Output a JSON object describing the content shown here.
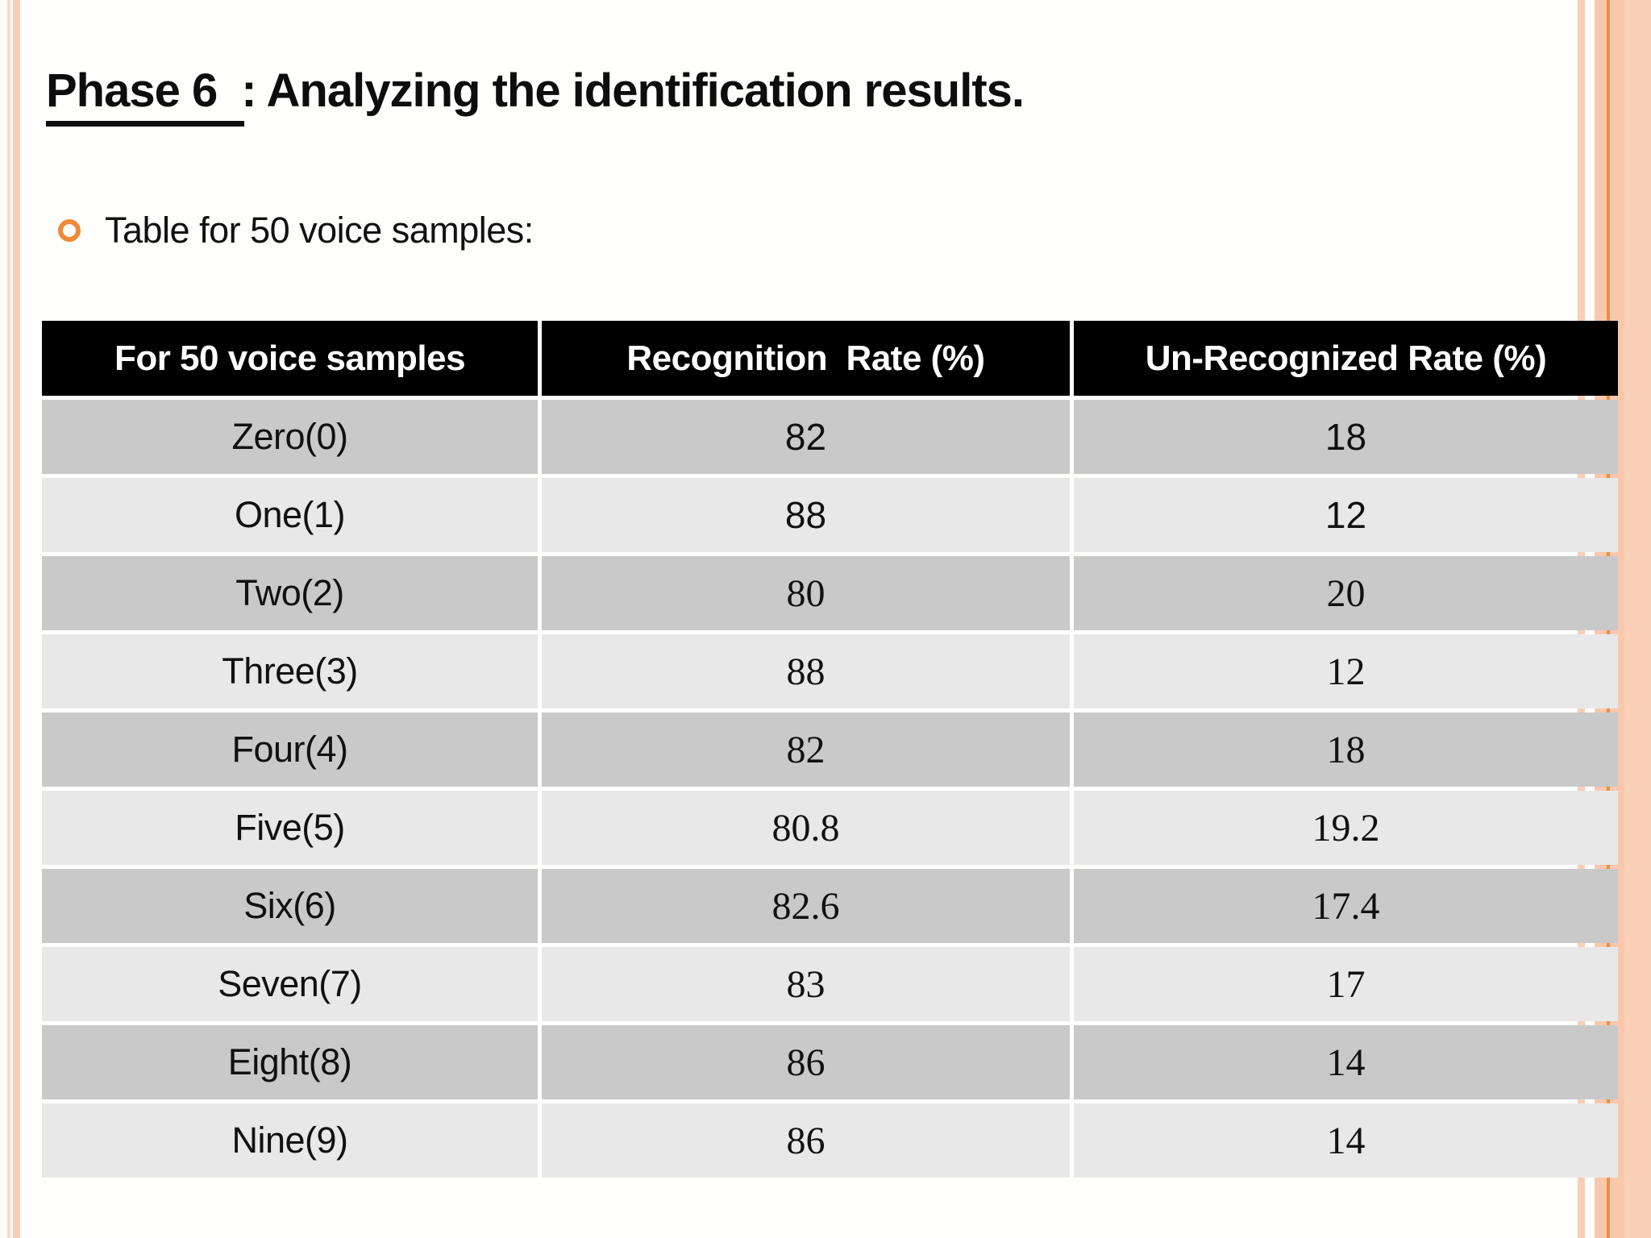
{
  "title": {
    "phase": "Phase 6",
    "rest": ": Analyzing the identification results."
  },
  "bullet": {
    "text": "Table for 50 voice samples:"
  },
  "table": {
    "headers": [
      "For 50 voice samples",
      "Recognition  Rate (%)",
      "Un-Recognized Rate (%)"
    ],
    "rows": [
      {
        "label": "Zero(0)",
        "recognition": "82",
        "unrecognized": "18",
        "value_style": "sans"
      },
      {
        "label": "One(1)",
        "recognition": "88",
        "unrecognized": "12",
        "value_style": "sans"
      },
      {
        "label": "Two(2)",
        "recognition": "80",
        "unrecognized": "20",
        "value_style": "serif"
      },
      {
        "label": "Three(3)",
        "recognition": "88",
        "unrecognized": "12",
        "value_style": "serif"
      },
      {
        "label": "Four(4)",
        "recognition": "82",
        "unrecognized": "18",
        "value_style": "serif"
      },
      {
        "label": "Five(5)",
        "recognition": "80.8",
        "unrecognized": "19.2",
        "value_style": "serif"
      },
      {
        "label": "Six(6)",
        "recognition": "82.6",
        "unrecognized": "17.4",
        "value_style": "serif"
      },
      {
        "label": "Seven(7)",
        "recognition": "83",
        "unrecognized": "17",
        "value_style": "serif"
      },
      {
        "label": "Eight(8)",
        "recognition": "86",
        "unrecognized": "14",
        "value_style": "serif"
      },
      {
        "label": "Nine(9)",
        "recognition": "86",
        "unrecognized": "14",
        "value_style": "serif"
      }
    ]
  },
  "colors": {
    "accent_peach": "#FACDB5",
    "accent_peach_light": "#FBD0B9",
    "accent_orange_line": "#EC8E45",
    "bullet_orange": "#EE8A38",
    "header_bg": "#000000",
    "header_text": "#FFFFFF",
    "row_dark": "#C9C9C9",
    "row_light": "#E8E8E8"
  }
}
